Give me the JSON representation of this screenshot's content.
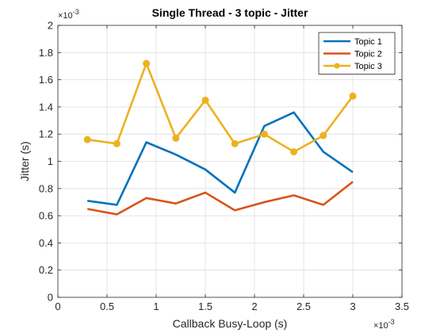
{
  "chart_data": {
    "type": "line",
    "title": "Single Thread - 3 topic - Jitter",
    "xlabel": "Callback Busy-Loop (s)",
    "ylabel": "Jitter (s)",
    "x_exponent_label": "×10",
    "x_exponent_power": "-3",
    "y_exponent_label": "×10",
    "y_exponent_power": "-3",
    "xlim": [
      0,
      3.5
    ],
    "ylim": [
      0,
      2
    ],
    "x_ticks": [
      "0",
      "0.5",
      "1",
      "1.5",
      "2",
      "2.5",
      "3",
      "3.5"
    ],
    "y_ticks": [
      "0",
      "0.2",
      "0.4",
      "0.6",
      "0.8",
      "1",
      "1.2",
      "1.4",
      "1.6",
      "1.8",
      "2"
    ],
    "x_tick_values": [
      0,
      0.5,
      1,
      1.5,
      2,
      2.5,
      3,
      3.5
    ],
    "y_tick_values": [
      0,
      0.2,
      0.4,
      0.6,
      0.8,
      1,
      1.2,
      1.4,
      1.6,
      1.8,
      2
    ],
    "grid": true,
    "legend_position": "top-right",
    "x": [
      0.3,
      0.6,
      0.9,
      1.2,
      1.5,
      1.8,
      2.1,
      2.4,
      2.7,
      3.0
    ],
    "series": [
      {
        "name": "Topic 1",
        "color": "#0072BD",
        "marker": false,
        "values": [
          0.71,
          0.68,
          1.14,
          1.05,
          0.94,
          0.77,
          1.26,
          1.36,
          1.07,
          0.92
        ]
      },
      {
        "name": "Topic 2",
        "color": "#D95319",
        "marker": false,
        "values": [
          0.65,
          0.61,
          0.73,
          0.69,
          0.77,
          0.64,
          0.7,
          0.75,
          0.68,
          0.85
        ]
      },
      {
        "name": "Topic 3",
        "color": "#EDB120",
        "marker": true,
        "values": [
          1.16,
          1.13,
          1.72,
          1.17,
          1.45,
          1.13,
          1.2,
          1.07,
          1.19,
          1.48
        ]
      }
    ]
  }
}
